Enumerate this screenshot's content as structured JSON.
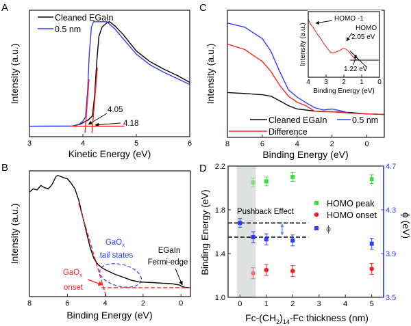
{
  "chart_data": [
    {
      "panel": "A",
      "type": "line",
      "xlabel": "Kinetic Energy (eV)",
      "ylabel": "Intensity (a.u.)",
      "xlim": [
        3,
        6
      ],
      "xticks": [
        "3",
        "4",
        "5",
        "6"
      ],
      "ylim": [
        -0.1,
        1.11
      ],
      "grid": false,
      "legend_position": "top-left",
      "series": [
        {
          "name": "Cleaned EGaIn",
          "color": "#000000",
          "points": [
            [
              3,
              0
            ],
            [
              3.8,
              0.002
            ],
            [
              3.95,
              0.02
            ],
            [
              4.1,
              0.06
            ],
            [
              4.18,
              0.1
            ],
            [
              4.22,
              0.3
            ],
            [
              4.26,
              0.62
            ],
            [
              4.3,
              0.86
            ],
            [
              4.36,
              0.95
            ],
            [
              4.45,
              0.99
            ],
            [
              4.5,
              1.0
            ],
            [
              4.6,
              0.96
            ],
            [
              4.75,
              0.88
            ],
            [
              5,
              0.72
            ],
            [
              5.25,
              0.62
            ],
            [
              5.5,
              0.55
            ],
            [
              5.75,
              0.49
            ],
            [
              6,
              0.42
            ]
          ]
        },
        {
          "name": "0.5 nm",
          "color": "#2d3cff",
          "points": [
            [
              3,
              0
            ],
            [
              3.8,
              0.002
            ],
            [
              3.92,
              0.015
            ],
            [
              4.0,
              0.05
            ],
            [
              4.05,
              0.09
            ],
            [
              4.09,
              0.35
            ],
            [
              4.12,
              0.7
            ],
            [
              4.16,
              0.95
            ],
            [
              4.2,
              1.0
            ],
            [
              4.45,
              1.0
            ],
            [
              4.6,
              0.93
            ],
            [
              4.75,
              0.84
            ],
            [
              5,
              0.69
            ],
            [
              5.25,
              0.59
            ],
            [
              5.5,
              0.52
            ],
            [
              5.75,
              0.46
            ],
            [
              6,
              0.4
            ]
          ]
        }
      ],
      "fit_lines": [
        {
          "color": "#ff2020",
          "points": [
            [
              4.04,
              -0.065
            ],
            [
              4.115,
              0.45
            ]
          ]
        },
        {
          "color": "#ff2020",
          "points": [
            [
              4.17,
              -0.065
            ],
            [
              4.27,
              0.56
            ]
          ]
        },
        {
          "color": "#ff2020",
          "points": [
            [
              3.77,
              0
            ],
            [
              4.78,
              0
            ]
          ]
        }
      ],
      "annotations": [
        {
          "text": "4.05",
          "value": 4.05
        },
        {
          "text": "4.18",
          "value": 4.18
        }
      ]
    },
    {
      "panel": "B",
      "type": "line",
      "xlabel": "Binding Energy (eV)",
      "ylabel": "Intensity (a.u.)",
      "xlim": [
        8,
        -0.5
      ],
      "xticks": [
        "8",
        "6",
        "4",
        "2",
        "0"
      ],
      "ylim": [
        -0.08,
        1.04
      ],
      "grid": false,
      "series": [
        {
          "color": "#000000",
          "points": [
            [
              8,
              0.85
            ],
            [
              7.8,
              0.88
            ],
            [
              7.6,
              0.87
            ],
            [
              7.4,
              0.91
            ],
            [
              7.2,
              0.89
            ],
            [
              7.0,
              0.88
            ],
            [
              6.8,
              0.92
            ],
            [
              6.6,
              0.99
            ],
            [
              6.5,
              1.0
            ],
            [
              6.2,
              0.98
            ],
            [
              6.0,
              0.97
            ],
            [
              5.8,
              0.93
            ],
            [
              5.6,
              0.88
            ],
            [
              5.4,
              0.78
            ],
            [
              5.2,
              0.64
            ],
            [
              5.0,
              0.5
            ],
            [
              4.8,
              0.36
            ],
            [
              4.6,
              0.26
            ],
            [
              4.4,
              0.21
            ],
            [
              4.2,
              0.18
            ],
            [
              4.0,
              0.16
            ],
            [
              3.5,
              0.12
            ],
            [
              3.0,
              0.09
            ],
            [
              2.6,
              0.065
            ],
            [
              2.2,
              0.05
            ],
            [
              1.5,
              0.045
            ],
            [
              1.0,
              0.04
            ],
            [
              0.5,
              0.035
            ],
            [
              0.1,
              0.025
            ],
            [
              0,
              0.015
            ],
            [
              -0.2,
              0.003
            ],
            [
              -0.5,
              0
            ]
          ]
        }
      ],
      "fit_lines": [
        {
          "color": "#ff2020",
          "dashed": true,
          "points": [
            [
              5.4,
              0.75
            ],
            [
              3.95,
              -0.08
            ]
          ]
        },
        {
          "color": "#ff2020",
          "dashed": true,
          "points": [
            [
              4.2,
              0
            ],
            [
              -0.5,
              0
            ]
          ]
        }
      ],
      "annotations": [
        {
          "text_main": "GaO",
          "text_sub": "x",
          "text_line2": "tail states",
          "color": "#2d3cff"
        },
        {
          "text_main": "GaO",
          "text_sub": "x",
          "text_line2": "onset",
          "color": "#ff2020"
        },
        {
          "text_line1": "EGaIn",
          "text_line2": "Fermi-edge",
          "color": "#000000"
        }
      ]
    },
    {
      "panel": "C",
      "type": "line",
      "xlabel": "Binding Energy (eV)",
      "ylabel": "Intensity (a.u.)",
      "xlim": [
        8,
        -1
      ],
      "xticks": [
        "8",
        "6",
        "4",
        "2",
        "0"
      ],
      "ylim": [
        -0.25,
        1.14
      ],
      "grid": false,
      "legend_position": "bottom-left",
      "series": [
        {
          "name": "Cleaned EGaIn",
          "color": "#000000",
          "points": [
            [
              8,
              0.24
            ],
            [
              7,
              0.23
            ],
            [
              6,
              0.216
            ],
            [
              5.5,
              0.2
            ],
            [
              5,
              0.15
            ],
            [
              4.5,
              0.097
            ],
            [
              4,
              0.06
            ],
            [
              3,
              0.037
            ],
            [
              2,
              0.03
            ],
            [
              1,
              0.022
            ],
            [
              0,
              0.007
            ],
            [
              -1,
              0
            ]
          ]
        },
        {
          "name": "0.5 nm",
          "color": "#2d3cff",
          "points": [
            [
              8,
              1.0
            ],
            [
              7,
              0.955
            ],
            [
              6,
              0.83
            ],
            [
              5.5,
              0.69
            ],
            [
              5,
              0.47
            ],
            [
              4.5,
              0.27
            ],
            [
              4,
              0.19
            ],
            [
              3.5,
              0.13
            ],
            [
              3,
              0.075
            ],
            [
              2.5,
              0.05
            ],
            [
              2,
              0.06
            ],
            [
              1.5,
              0.04
            ],
            [
              1,
              0.015
            ],
            [
              0,
              0.007
            ],
            [
              -1,
              0
            ]
          ]
        },
        {
          "name": "Difference",
          "color": "#ff2020",
          "points": [
            [
              8,
              0.77
            ],
            [
              7,
              0.71
            ],
            [
              6,
              0.58
            ],
            [
              5.5,
              0.47
            ],
            [
              5,
              0.32
            ],
            [
              4.5,
              0.2
            ],
            [
              4,
              0.134
            ],
            [
              3.5,
              0.097
            ],
            [
              3,
              0.037
            ],
            [
              2.5,
              0.03
            ],
            [
              2,
              0.03
            ],
            [
              1.5,
              0.022
            ],
            [
              1,
              0.015
            ],
            [
              0,
              0.007
            ],
            [
              -1,
              0
            ]
          ]
        }
      ],
      "inset": {
        "xlabel": "Binding Energy (eV)",
        "ylabel": "Intensity (a.u.)",
        "xlim": [
          4,
          0
        ],
        "xticks": [
          "4",
          "3",
          "2",
          "1",
          "0"
        ],
        "ylim": [
          0,
          1
        ],
        "series": [
          {
            "color": "#ff2020",
            "points": [
              [
                4,
                0.88
              ],
              [
                3.85,
                0.8
              ],
              [
                3.7,
                0.75
              ],
              [
                3.5,
                0.66
              ],
              [
                3.3,
                0.59
              ],
              [
                3.1,
                0.5
              ],
              [
                2.9,
                0.43
              ],
              [
                2.75,
                0.38
              ],
              [
                2.6,
                0.37
              ],
              [
                2.4,
                0.39
              ],
              [
                2.2,
                0.41
              ],
              [
                2.05,
                0.44
              ],
              [
                1.9,
                0.43
              ],
              [
                1.75,
                0.4
              ],
              [
                1.6,
                0.35
              ],
              [
                1.45,
                0.3
              ],
              [
                1.3,
                0.27
              ],
              [
                1.22,
                0.26
              ],
              [
                0.8,
                0.26
              ],
              [
                0,
                0.26
              ]
            ]
          }
        ],
        "fit_lines": [
          {
            "color": "#000000",
            "points": [
              [
                1.65,
                0.4
              ],
              [
                0.75,
                0.16
              ]
            ]
          },
          {
            "color": "#000000",
            "points": [
              [
                1.65,
                0.26
              ],
              [
                0.05,
                0.26
              ]
            ]
          }
        ],
        "annotations": [
          {
            "text": "HOMO -1"
          },
          {
            "text": "HOMO",
            "text_line2": "2.05 eV"
          },
          {
            "text": "1.22 eV"
          }
        ]
      }
    },
    {
      "panel": "D",
      "type": "scatter",
      "xlabel_parts": [
        "Fc-(CH",
        "2",
        ")",
        "14",
        "-Fc thickness (nm)"
      ],
      "ylabel": "Binding Energy (eV)",
      "y2label": "ϕ (eV)",
      "xlim": [
        -0.45,
        5.45
      ],
      "xticks": [
        "0",
        "1",
        "2",
        "3",
        "4",
        "5"
      ],
      "ylim": [
        1.0,
        2.2
      ],
      "yticks": [
        "1.0",
        "1.4",
        "1.8",
        "2.2"
      ],
      "y2lim": [
        3.5,
        4.7
      ],
      "y2ticks": [
        "3.5",
        "3.9",
        "4.3",
        "4.7"
      ],
      "grid": false,
      "legend_position": "right",
      "shaded_region": {
        "x": [
          -0.12,
          0.6
        ],
        "color": "#dde2e0"
      },
      "series": [
        {
          "name": "HOMO peak",
          "color": "#3ddc3d",
          "marker": "square",
          "axis": "left",
          "x": [
            0.5,
            1,
            2,
            5
          ],
          "y": [
            2.05,
            2.06,
            2.1,
            2.08
          ],
          "err": [
            0.04,
            0.04,
            0.04,
            0.04
          ]
        },
        {
          "name": "HOMO onset",
          "color": "#ee2222",
          "marker": "circle",
          "axis": "left",
          "x": [
            0.5,
            1,
            2,
            5
          ],
          "y": [
            1.22,
            1.25,
            1.24,
            1.26
          ],
          "err": [
            0.05,
            0.05,
            0.05,
            0.05
          ]
        },
        {
          "name": "ϕ",
          "color": "#2d3cff",
          "marker": "square",
          "axis": "right",
          "x": [
            0,
            0.5,
            1,
            2,
            5
          ],
          "y": [
            4.18,
            4.05,
            4.03,
            4.02,
            3.99
          ],
          "err": [
            0.04,
            0.05,
            0.05,
            0.05,
            0.05
          ]
        }
      ],
      "reference_lines": [
        {
          "y": 1.68,
          "x": [
            -0.45,
            2.6
          ],
          "style": "dashed"
        },
        {
          "y": 1.55,
          "x": [
            -0.45,
            2.6
          ],
          "style": "dashed"
        }
      ],
      "annotation": {
        "text": "Pushback Effect",
        "arrow_x": 1.6,
        "arrow_y": [
          1.67,
          1.57
        ]
      }
    }
  ],
  "panel_letters": [
    "A",
    "B",
    "C",
    "D"
  ]
}
